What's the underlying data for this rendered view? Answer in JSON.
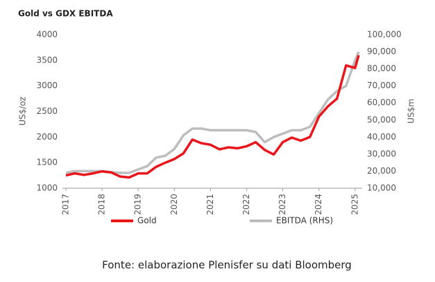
{
  "chart_data": {
    "type": "line",
    "title": "Gold vs GDX EBITDA",
    "ylabel": "US$/oz",
    "y2label": "US$m",
    "caption": "Fonte: elaborazione Plenisfer su dati Bloomberg",
    "x": [
      2017,
      2017.25,
      2017.5,
      2017.75,
      2018,
      2018.25,
      2018.5,
      2018.75,
      2019,
      2019.25,
      2019.5,
      2019.75,
      2020,
      2020.25,
      2020.5,
      2020.75,
      2021,
      2021.25,
      2021.5,
      2021.75,
      2022,
      2022.25,
      2022.5,
      2022.75,
      2023,
      2023.25,
      2023.5,
      2023.75,
      2024,
      2024.25,
      2024.5,
      2024.75,
      2025,
      2025.1
    ],
    "xlim": [
      2017,
      2025.1
    ],
    "xticks": [
      2017,
      2018,
      2019,
      2020,
      2021,
      2022,
      2023,
      2024,
      2025
    ],
    "ylim": [
      1000,
      4000
    ],
    "yticks": [
      1000,
      1500,
      2000,
      2500,
      3000,
      3500,
      4000
    ],
    "y2lim": [
      10000,
      100000
    ],
    "y2ticks": [
      {
        "value": 10000,
        "label": "10,000"
      },
      {
        "value": 20000,
        "label": "20,000"
      },
      {
        "value": 30000,
        "label": "30,000"
      },
      {
        "value": 40000,
        "label": "40,000"
      },
      {
        "value": 50000,
        "label": "50,000"
      },
      {
        "value": 60000,
        "label": "60,000"
      },
      {
        "value": 70000,
        "label": "70,000"
      },
      {
        "value": 80000,
        "label": "80,000"
      },
      {
        "value": 90000,
        "label": "90,000"
      },
      {
        "value": 100000,
        "label": "100,000"
      }
    ],
    "series": [
      {
        "name": "Gold",
        "color": "#e8151b",
        "values": [
          1250,
          1290,
          1260,
          1290,
          1330,
          1310,
          1230,
          1210,
          1290,
          1290,
          1420,
          1500,
          1570,
          1680,
          1950,
          1880,
          1850,
          1760,
          1800,
          1780,
          1820,
          1900,
          1750,
          1660,
          1900,
          1990,
          1930,
          2000,
          2400,
          2600,
          2750,
          3400,
          3350,
          3600
        ]
      },
      {
        "name": "EBITDA (RHS)",
        "color": "#bdbdbd",
        "axis": "y2",
        "values": [
          19000,
          20000,
          20000,
          20000,
          20000,
          19500,
          19000,
          19000,
          21000,
          23000,
          28000,
          29000,
          33000,
          41000,
          45000,
          45000,
          44000,
          44000,
          44000,
          44000,
          44000,
          43000,
          37000,
          40000,
          42000,
          44000,
          44000,
          46000,
          54000,
          62000,
          67000,
          70000,
          85000,
          90000
        ]
      }
    ]
  }
}
